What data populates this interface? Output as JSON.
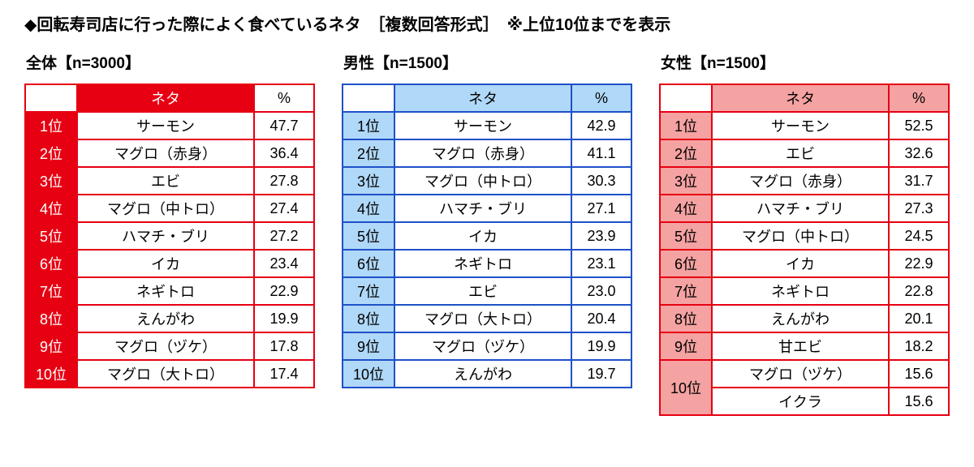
{
  "page_title": "◆回転寿司店に行った際によく食べているネタ　［複数回答形式］　※上位10位までを表示",
  "colors": {
    "red_accent": "#e60012",
    "blue_border": "#1e50c8",
    "blue_fill": "#b0d8f8",
    "pink_fill": "#f5a2a2",
    "background": "#ffffff",
    "text": "#000000"
  },
  "chart_data": [
    {
      "type": "table",
      "key": "overall",
      "title": "全体【n=3000】",
      "theme": "red",
      "colors": {
        "border": "#e60012",
        "fill": "#e60012",
        "fill_text": "#ffffff"
      },
      "header": {
        "item_col": "ネタ",
        "value_col": "%"
      },
      "rows": [
        {
          "rank": "1位",
          "item": "サーモン",
          "value": "47.7"
        },
        {
          "rank": "2位",
          "item": "マグロ（赤身）",
          "value": "36.4"
        },
        {
          "rank": "3位",
          "item": "エビ",
          "value": "27.8"
        },
        {
          "rank": "4位",
          "item": "マグロ（中トロ）",
          "value": "27.4"
        },
        {
          "rank": "5位",
          "item": "ハマチ・ブリ",
          "value": "27.2"
        },
        {
          "rank": "6位",
          "item": "イカ",
          "value": "23.4"
        },
        {
          "rank": "7位",
          "item": "ネギトロ",
          "value": "22.9"
        },
        {
          "rank": "8位",
          "item": "えんがわ",
          "value": "19.9"
        },
        {
          "rank": "9位",
          "item": "マグロ（ヅケ）",
          "value": "17.8"
        },
        {
          "rank": "10位",
          "item": "マグロ（大トロ）",
          "value": "17.4"
        }
      ]
    },
    {
      "type": "table",
      "key": "male",
      "title": "男性【n=1500】",
      "theme": "blue",
      "colors": {
        "border": "#1e50c8",
        "fill": "#b0d8f8",
        "fill_text": "#000000"
      },
      "header": {
        "item_col": "ネタ",
        "value_col": "%"
      },
      "rows": [
        {
          "rank": "1位",
          "item": "サーモン",
          "value": "42.9"
        },
        {
          "rank": "2位",
          "item": "マグロ（赤身）",
          "value": "41.1"
        },
        {
          "rank": "3位",
          "item": "マグロ（中トロ）",
          "value": "30.3"
        },
        {
          "rank": "4位",
          "item": "ハマチ・ブリ",
          "value": "27.1"
        },
        {
          "rank": "5位",
          "item": "イカ",
          "value": "23.9"
        },
        {
          "rank": "6位",
          "item": "ネギトロ",
          "value": "23.1"
        },
        {
          "rank": "7位",
          "item": "エビ",
          "value": "23.0"
        },
        {
          "rank": "8位",
          "item": "マグロ（大トロ）",
          "value": "20.4"
        },
        {
          "rank": "9位",
          "item": "マグロ（ヅケ）",
          "value": "19.9"
        },
        {
          "rank": "10位",
          "item": "えんがわ",
          "value": "19.7"
        }
      ]
    },
    {
      "type": "table",
      "key": "female",
      "title": "女性【n=1500】",
      "theme": "pink",
      "colors": {
        "border": "#e60012",
        "fill": "#f5a2a2",
        "fill_text": "#000000"
      },
      "header": {
        "item_col": "ネタ",
        "value_col": "%"
      },
      "rows": [
        {
          "rank": "1位",
          "item": "サーモン",
          "value": "52.5"
        },
        {
          "rank": "2位",
          "item": "エビ",
          "value": "32.6"
        },
        {
          "rank": "3位",
          "item": "マグロ（赤身）",
          "value": "31.7"
        },
        {
          "rank": "4位",
          "item": "ハマチ・ブリ",
          "value": "27.3"
        },
        {
          "rank": "5位",
          "item": "マグロ（中トロ）",
          "value": "24.5"
        },
        {
          "rank": "6位",
          "item": "イカ",
          "value": "22.9"
        },
        {
          "rank": "7位",
          "item": "ネギトロ",
          "value": "22.8"
        },
        {
          "rank": "8位",
          "item": "えんがわ",
          "value": "20.1"
        },
        {
          "rank": "9位",
          "item": "甘エビ",
          "value": "18.2"
        },
        {
          "rank": "10位",
          "item": "マグロ（ヅケ）",
          "value": "15.6"
        },
        {
          "rank": null,
          "item": "イクラ",
          "value": "15.6"
        }
      ]
    }
  ]
}
